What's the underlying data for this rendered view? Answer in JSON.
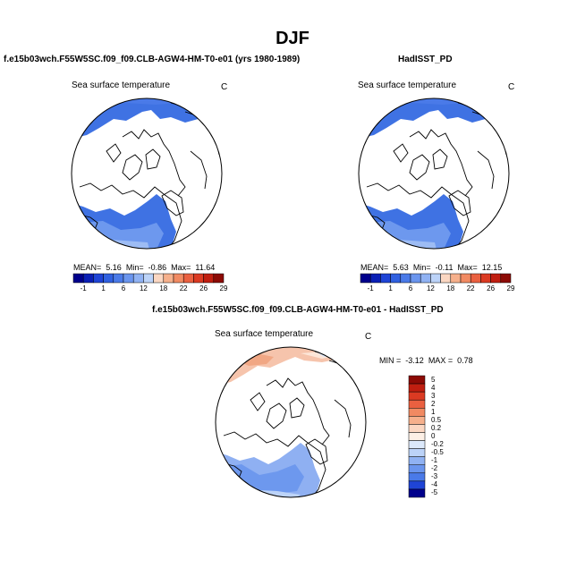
{
  "page": {
    "title": "DJF"
  },
  "chart_data": [
    {
      "type": "heatmap",
      "header": "f.e15b03wch.F55W5SC.f09_f09.CLB-AGW4-HM-T0-e01 (yrs 1980-1989)",
      "subtitle": "Sea surface temperature",
      "units": "C",
      "stats": {
        "mean_label": "MEAN=",
        "mean": "5.16",
        "min_label": "Min=",
        "min": "-0.86",
        "max_label": "Max=",
        "max": "11.64"
      },
      "colorbar_ticks": [
        "-1",
        "1",
        "6",
        "12",
        "18",
        "22",
        "26",
        "29"
      ],
      "projection": "north polar stereographic"
    },
    {
      "type": "heatmap",
      "header": "HadISST_PD",
      "subtitle": "Sea surface temperature",
      "units": "C",
      "stats": {
        "mean_label": "MEAN=",
        "mean": "5.63",
        "min_label": "Min=",
        "min": "-0.11",
        "max_label": "Max=",
        "max": "12.15"
      },
      "colorbar_ticks": [
        "-1",
        "1",
        "6",
        "12",
        "18",
        "22",
        "26",
        "29"
      ],
      "projection": "north polar stereographic"
    },
    {
      "type": "heatmap",
      "header": "f.e15b03wch.F55W5SC.f09_f09.CLB-AGW4-HM-T0-e01 - HadISST_PD",
      "subtitle": "Sea surface temperature",
      "units": "C",
      "stats": {
        "min_label": "MIN =",
        "min": "-3.12",
        "max_label": "MAX =",
        "max": "0.78"
      },
      "colorbar_ticks": [
        "5",
        "4",
        "3",
        "2",
        "1",
        "0.5",
        "0.2",
        "0",
        "-0.2",
        "-0.5",
        "-1",
        "-2",
        "-3",
        "-4",
        "-5"
      ],
      "projection": "north polar stereographic"
    }
  ],
  "colors": {
    "abs_scale": [
      "#00008c",
      "#0a1fb5",
      "#1f44d6",
      "#3060e0",
      "#4a7ae8",
      "#6a95ee",
      "#90b2f3",
      "#bcd3f8",
      "#fbd7c2",
      "#f6b08c",
      "#f18a62",
      "#ea6040",
      "#db3a22",
      "#c01e10",
      "#8c0a05"
    ],
    "diff_scale": [
      "#8c0a05",
      "#c01e10",
      "#db3a22",
      "#ea6040",
      "#f18a62",
      "#f6b08c",
      "#fbd7c2",
      "#fdf0e6",
      "#dce9fb",
      "#bcd3f8",
      "#90b2f3",
      "#6a95ee",
      "#4a7ae8",
      "#1f44d6",
      "#00008c"
    ],
    "ocean_cold": "#3f72e3",
    "ocean_mid": "#6d98ee",
    "ocean_warm": "#9dbcf4",
    "diff_warm": "#f6c4ac",
    "diff_cool": "#8fb0f2"
  }
}
